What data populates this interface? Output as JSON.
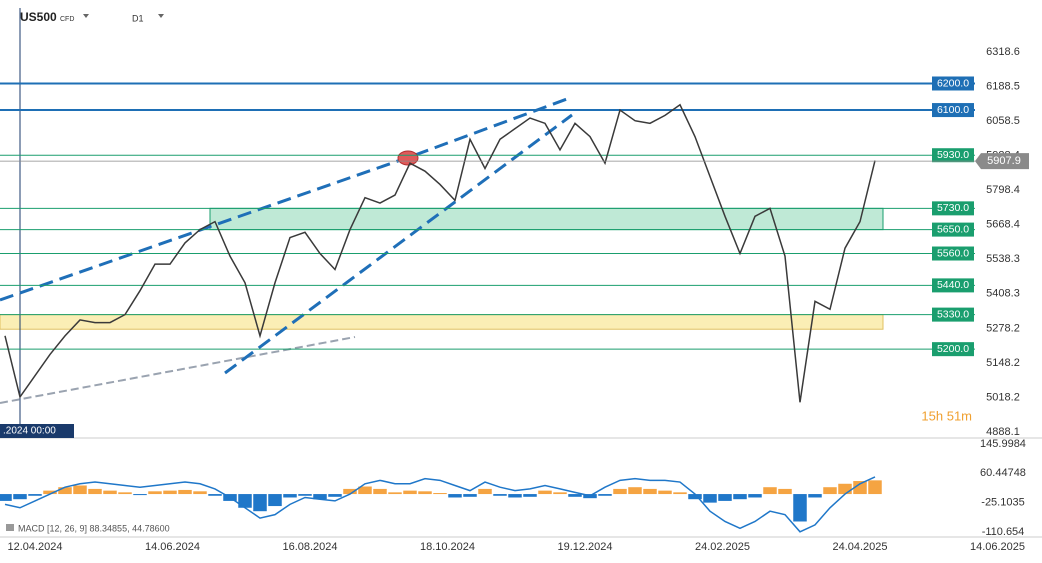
{
  "header": {
    "symbol": "US500",
    "kind": "CFD",
    "timeframe": "D1",
    "crosshair_label": ".2024 00:00",
    "timer": "15h 51m"
  },
  "x_tick_labels": [
    "12.04.2024",
    "14.06.2024",
    "16.08.2024",
    "18.10.2024",
    "19.12.2024",
    "24.02.2025",
    "24.04.2025",
    "14.06.2025"
  ],
  "chart_data": [
    {
      "type": "line",
      "series": [
        {
          "color": "#3a3a3a",
          "values": [
            5250,
            5020,
            5100,
            5180,
            5250,
            5310,
            5300,
            5300,
            5330,
            5420,
            5520,
            5520,
            5600,
            5650,
            5680,
            5550,
            5450,
            5250,
            5450,
            5620,
            5640,
            5560,
            5500,
            5650,
            5770,
            5750,
            5780,
            5900,
            5870,
            5820,
            5760,
            5990,
            5880,
            5990,
            6030,
            6070,
            6050,
            5950,
            6050,
            6000,
            5900,
            6100,
            6060,
            6050,
            6080,
            6120,
            6000,
            5850,
            5700,
            5560,
            5700,
            5730,
            5550,
            5000,
            5380,
            5350,
            5580,
            5680,
            5910
          ]
        }
      ],
      "ylim": [
        4869.3,
        6514.3
      ],
      "yticks": [
        6318.6,
        6188.5,
        6058.5,
        5928.4,
        5798.4,
        5668.4,
        5538.3,
        5408.3,
        5278.2,
        5148.2,
        5018.2,
        4888.1
      ],
      "levels": [
        {
          "value": 6200,
          "label": "6200.0",
          "color": "#1e6fb5"
        },
        {
          "value": 6100,
          "label": "6100.0",
          "color": "#1e6fb5"
        },
        {
          "value": 5930,
          "label": "5930.0",
          "color": "#1a9e6e"
        },
        {
          "value": 5730,
          "label": "5730.0",
          "color": "#1a9e6e"
        },
        {
          "value": 5650,
          "label": "5650.0",
          "color": "#1a9e6e"
        },
        {
          "value": 5560,
          "label": "5560.0",
          "color": "#1a9e6e"
        },
        {
          "value": 5440,
          "label": "5440.0",
          "color": "#1a9e6e"
        },
        {
          "value": 5330,
          "label": "5330.0",
          "color": "#1a9e6e"
        },
        {
          "value": 5200,
          "label": "5200.0",
          "color": "#1a9e6e"
        }
      ],
      "zones": [
        {
          "from": 5650,
          "to": 5730,
          "color": "#bfe9d6"
        },
        {
          "from": 5275,
          "to": 5330,
          "color": "#fbeeb5"
        }
      ],
      "current_price": {
        "value": 5907.9,
        "label": "5907.9",
        "color": "#8a8a8a"
      }
    },
    {
      "type": "bar",
      "title": "MACD [12, 26, 9] 88.34855, 44.78600",
      "series": [
        {
          "colors": {
            "positive": "#f5a442",
            "negative": "#1f77c9"
          },
          "values": [
            -20,
            -15,
            -5,
            10,
            20,
            25,
            15,
            10,
            5,
            -3,
            8,
            10,
            12,
            8,
            -5,
            -20,
            -40,
            -50,
            -35,
            -10,
            -5,
            -15,
            -8,
            15,
            22,
            15,
            5,
            10,
            8,
            3,
            -10,
            -8,
            15,
            -5,
            -10,
            -8,
            10,
            5,
            -8,
            -12,
            -5,
            15,
            20,
            15,
            10,
            5,
            -15,
            -25,
            -20,
            -15,
            -10,
            20,
            15,
            -80,
            -10,
            20,
            30,
            38,
            40
          ]
        },
        {
          "color": "#1f77c9",
          "values": [
            -30,
            -40,
            -20,
            0,
            20,
            30,
            35,
            30,
            25,
            20,
            25,
            30,
            35,
            30,
            15,
            -10,
            -40,
            -70,
            -60,
            -30,
            -10,
            -15,
            -20,
            0,
            30,
            40,
            30,
            30,
            45,
            40,
            25,
            10,
            35,
            20,
            10,
            15,
            25,
            15,
            5,
            -5,
            20,
            40,
            45,
            40,
            40,
            35,
            0,
            -50,
            -80,
            -100,
            -80,
            -50,
            -60,
            -110,
            -90,
            -40,
            0,
            30,
            50
          ]
        }
      ],
      "ylim": [
        -125.24,
        157.66
      ],
      "yticks": [
        145.9984,
        60.44748,
        -25.1035,
        -110.654
      ]
    }
  ]
}
